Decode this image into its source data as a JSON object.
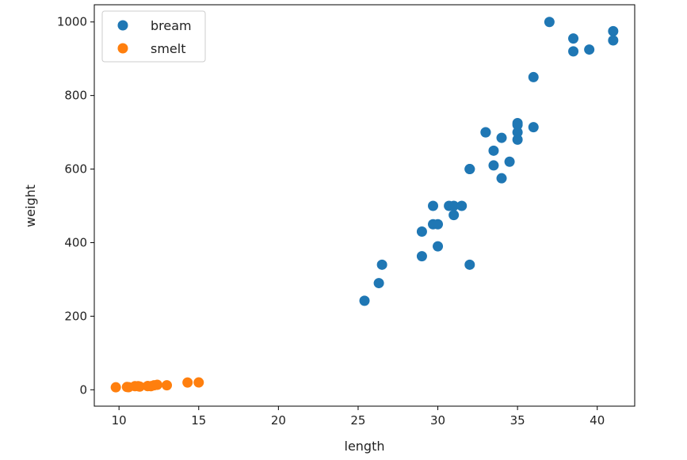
{
  "chart_data": {
    "type": "scatter",
    "xlabel": "length",
    "ylabel": "weight",
    "xlim": [
      8.45,
      42.35
    ],
    "ylim": [
      -44.6,
      1046.8
    ],
    "xticks": [
      10,
      15,
      20,
      25,
      30,
      35,
      40
    ],
    "yticks": [
      0,
      200,
      400,
      600,
      800,
      1000
    ],
    "grid": false,
    "legend": {
      "position": "top-left"
    },
    "series": [
      {
        "name": "bream",
        "color": "#1f77b4",
        "x": [
          25.4,
          26.3,
          26.5,
          29.0,
          29.0,
          29.7,
          29.7,
          30.0,
          30.0,
          30.7,
          31.0,
          31.0,
          31.5,
          32.0,
          32.0,
          32.0,
          33.0,
          33.0,
          33.5,
          33.5,
          34.0,
          34.0,
          34.5,
          35.0,
          35.0,
          35.0,
          35.0,
          36.0,
          36.0,
          37.0,
          38.5,
          38.5,
          39.5,
          41.0,
          41.0
        ],
        "y": [
          242.0,
          290.0,
          340.0,
          363.0,
          430.0,
          450.0,
          500.0,
          390.0,
          450.0,
          500.0,
          475.0,
          500.0,
          500.0,
          340.0,
          600.0,
          600.0,
          700.0,
          700.0,
          610.0,
          650.0,
          575.0,
          685.0,
          620.0,
          680.0,
          700.0,
          725.0,
          720.0,
          714.0,
          850.0,
          1000.0,
          920.0,
          955.0,
          925.0,
          975.0,
          950.0
        ]
      },
      {
        "name": "smelt",
        "color": "#ff7f0e",
        "x": [
          9.8,
          10.5,
          10.6,
          11.0,
          11.2,
          11.3,
          11.8,
          11.8,
          12.0,
          12.2,
          12.4,
          13.0,
          14.3,
          15.0
        ],
        "y": [
          6.7,
          7.5,
          7.0,
          9.7,
          9.8,
          8.7,
          10.0,
          9.9,
          9.8,
          12.2,
          13.4,
          12.2,
          19.7,
          19.9
        ]
      }
    ]
  }
}
